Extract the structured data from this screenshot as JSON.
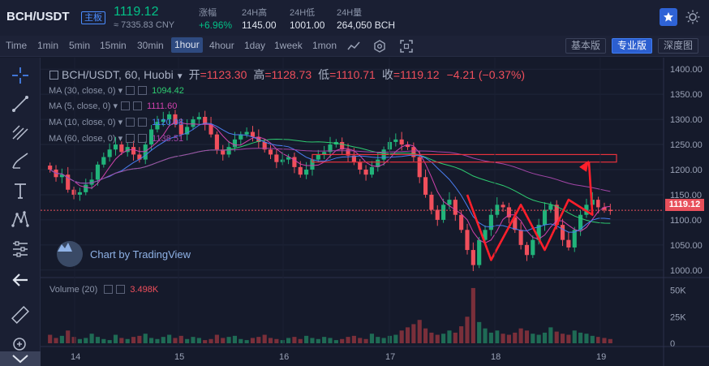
{
  "header": {
    "pair": "BCH/USDT",
    "board_badge": "主板",
    "last_price": "1119.12",
    "cny_price": "≈ 7335.83 CNY",
    "stats": [
      {
        "label": "涨幅",
        "value": "+6.96%",
        "color": "#03c087"
      },
      {
        "label": "24H高",
        "value": "1145.00"
      },
      {
        "label": "24H低",
        "value": "1001.00"
      },
      {
        "label": "24H量",
        "value": "264,050 BCH"
      }
    ],
    "favorite_icon": "star-icon",
    "theme_icon": "sun-icon"
  },
  "toolbar": {
    "time_label": "Time",
    "intervals": [
      "1min",
      "5min",
      "15min",
      "30min",
      "1hour",
      "4hour",
      "1day",
      "1week",
      "1mon"
    ],
    "active_interval": "1hour",
    "icons": [
      "settings-icon",
      "fullscreen-icon"
    ],
    "versions": [
      "基本版",
      "专业版",
      "深度图"
    ],
    "active_version": "专业版"
  },
  "drawing_tools": [
    "crosshair-icon",
    "trendline-icon",
    "fib-icon",
    "brush-icon",
    "text-icon",
    "pattern-icon",
    "measure-icon",
    "back-arrow-icon",
    "ruler-icon",
    "zoom-icon"
  ],
  "legend": {
    "title": "BCH/USDT, 60, Huobi",
    "open_label": "开",
    "open": "=1123.30",
    "high_label": "高",
    "high": "=1128.73",
    "low_label": "低",
    "low": "=1110.71",
    "close_label": "收",
    "close": "=1119.12",
    "change": "−4.21 (−0.37%)"
  },
  "ma_indicators": [
    {
      "label": "MA (30, close, 0)",
      "value": "1094.42",
      "color": "#2ecc71"
    },
    {
      "label": "MA (5, close, 0)",
      "value": "1111.60",
      "color": "#d142ad"
    },
    {
      "label": "MA (10, close, 0)",
      "value": "1120.08",
      "color": "#4a7df0"
    },
    {
      "label": "MA (60, close, 0)",
      "value": "1138.51",
      "color": "#a346a8"
    }
  ],
  "volume_legend": {
    "label": "Volume (20)",
    "value": "3.498K"
  },
  "watermark": "Chart by TradingView",
  "current_price_tag": "1119.12",
  "chart_data": {
    "type": "candlestick",
    "price_axis_ticks": [
      "1400.00",
      "1350.00",
      "1300.00",
      "1250.00",
      "1200.00",
      "1150.00",
      "1100.00",
      "1050.00",
      "1000.00"
    ],
    "volume_axis_ticks": [
      "50K",
      "25K",
      "0"
    ],
    "x_ticks": [
      "14",
      "15",
      "16",
      "17",
      "18",
      "19"
    ],
    "price_range": [
      990,
      1410
    ],
    "volume_range": [
      0,
      55
    ],
    "up_color": "#21b37a",
    "down_color": "#f04f5c",
    "close_series": [
      1200,
      1185,
      1190,
      1160,
      1150,
      1155,
      1170,
      1180,
      1210,
      1225,
      1240,
      1250,
      1235,
      1245,
      1230,
      1220,
      1250,
      1280,
      1295,
      1300,
      1310,
      1290,
      1270,
      1285,
      1300,
      1305,
      1290,
      1270,
      1240,
      1230,
      1245,
      1260,
      1270,
      1275,
      1265,
      1255,
      1240,
      1230,
      1215,
      1220,
      1225,
      1205,
      1190,
      1200,
      1220,
      1230,
      1235,
      1250,
      1255,
      1240,
      1228,
      1215,
      1200,
      1190,
      1205,
      1220,
      1240,
      1255,
      1260,
      1250,
      1245,
      1225,
      1185,
      1150,
      1120,
      1100,
      1130,
      1140,
      1110,
      1080,
      1040,
      1010,
      1060,
      1080,
      1110,
      1130,
      1125,
      1105,
      1080,
      1050,
      1030,
      1060,
      1090,
      1120,
      1130,
      1090,
      1060,
      1045,
      1080,
      1110,
      1130,
      1140,
      1125,
      1120,
      1119
    ],
    "volume_series": [
      8,
      5,
      7,
      12,
      6,
      4,
      5,
      9,
      6,
      4,
      3,
      8,
      5,
      4,
      6,
      7,
      9,
      5,
      4,
      6,
      8,
      5,
      7,
      4,
      6,
      5,
      3,
      4,
      8,
      5,
      6,
      7,
      4,
      3,
      5,
      6,
      8,
      5,
      4,
      3,
      5,
      6,
      4,
      7,
      5,
      4,
      6,
      5,
      3,
      4,
      6,
      7,
      5,
      4,
      9,
      6,
      5,
      7,
      8,
      12,
      15,
      18,
      22,
      14,
      10,
      8,
      9,
      12,
      10,
      16,
      25,
      52,
      20,
      14,
      10,
      12,
      9,
      8,
      10,
      14,
      12,
      9,
      8,
      10,
      15,
      11,
      9,
      8,
      12,
      10,
      9,
      7,
      6,
      5,
      4
    ],
    "hline": 1119.12,
    "resistance_box": [
      1215,
      1230
    ],
    "annotation": "hand-drawn red W pattern with upward arrow"
  }
}
